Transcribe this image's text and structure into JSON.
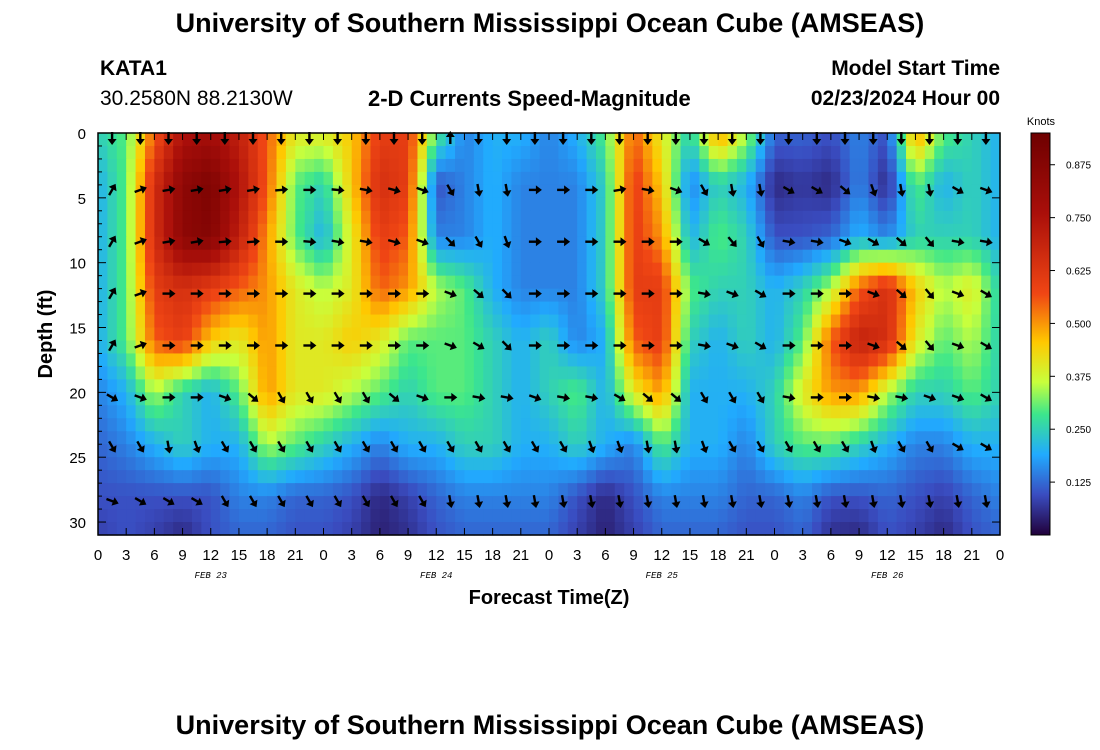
{
  "page": {
    "title": "University of Southern Mississippi Ocean Cube (AMSEAS)",
    "footer_title": "University of Southern Mississippi Ocean Cube (AMSEAS)",
    "station": "KATA1",
    "coords": "30.2580N  88.2130W",
    "subtitle": "2-D Currents Speed-Magnitude",
    "model_start_label": "Model Start Time",
    "model_start_value": "02/23/2024 Hour 00"
  },
  "chart_data": {
    "type": "heatmap",
    "title": "2-D Currents Speed-Magnitude",
    "xlabel": "Forecast Time(Z)",
    "ylabel": "Depth (ft)",
    "x_range_hours": [
      0,
      96
    ],
    "x_tick_labels": [
      "0",
      "3",
      "6",
      "9",
      "12",
      "15",
      "18",
      "21",
      "0",
      "3",
      "6",
      "9",
      "12",
      "15",
      "18",
      "21",
      "0",
      "3",
      "6",
      "9",
      "12",
      "15",
      "18",
      "21",
      "0",
      "3",
      "6",
      "9",
      "12",
      "15",
      "18",
      "21",
      "0"
    ],
    "date_labels": [
      {
        "hour": 12,
        "label": "FEB 23"
      },
      {
        "hour": 36,
        "label": "FEB 24"
      },
      {
        "hour": 60,
        "label": "FEB 25"
      },
      {
        "hour": 84,
        "label": "FEB 26"
      }
    ],
    "y_range_ft": [
      0,
      31
    ],
    "y_ticks": [
      0,
      5,
      10,
      15,
      20,
      25,
      30
    ],
    "colorbar": {
      "label": "Knots",
      "range": [
        0,
        0.95
      ],
      "ticks": [
        0.125,
        0.25,
        0.375,
        0.5,
        0.625,
        0.75,
        0.875
      ],
      "tick_labels": [
        "0.125",
        "0.250",
        "0.375",
        "0.500",
        "0.625",
        "0.750",
        "0.875"
      ]
    },
    "speed_grid": {
      "depths_ft": [
        0,
        4,
        8,
        12,
        16,
        20,
        24,
        28,
        31
      ],
      "hours": [
        0,
        3,
        6,
        9,
        12,
        15,
        18,
        21,
        24,
        27,
        30,
        33,
        36,
        39,
        42,
        45,
        48,
        51,
        54,
        57,
        60,
        63,
        66,
        69,
        72,
        75,
        78,
        81,
        84,
        87,
        90,
        93,
        96
      ],
      "values": [
        [
          0.25,
          0.3,
          0.55,
          0.75,
          0.78,
          0.7,
          0.55,
          0.4,
          0.4,
          0.45,
          0.6,
          0.6,
          0.3,
          0.15,
          0.2,
          0.2,
          0.15,
          0.2,
          0.3,
          0.55,
          0.4,
          0.25,
          0.5,
          0.35,
          0.12,
          0.12,
          0.1,
          0.15,
          0.1,
          0.5,
          0.3,
          0.25,
          0.2
        ],
        [
          0.2,
          0.3,
          0.65,
          0.85,
          0.9,
          0.75,
          0.55,
          0.3,
          0.25,
          0.45,
          0.65,
          0.6,
          0.1,
          0.15,
          0.2,
          0.15,
          0.15,
          0.15,
          0.25,
          0.6,
          0.45,
          0.15,
          0.25,
          0.2,
          0.05,
          0.07,
          0.05,
          0.15,
          0.05,
          0.3,
          0.2,
          0.25,
          0.2
        ],
        [
          0.2,
          0.3,
          0.65,
          0.85,
          0.88,
          0.7,
          0.5,
          0.3,
          0.2,
          0.4,
          0.6,
          0.55,
          0.15,
          0.15,
          0.2,
          0.15,
          0.15,
          0.15,
          0.25,
          0.6,
          0.5,
          0.2,
          0.3,
          0.25,
          0.1,
          0.1,
          0.12,
          0.2,
          0.15,
          0.25,
          0.25,
          0.25,
          0.2
        ],
        [
          0.2,
          0.3,
          0.6,
          0.65,
          0.6,
          0.55,
          0.5,
          0.4,
          0.35,
          0.4,
          0.55,
          0.5,
          0.35,
          0.3,
          0.2,
          0.15,
          0.15,
          0.15,
          0.25,
          0.6,
          0.6,
          0.3,
          0.25,
          0.25,
          0.2,
          0.25,
          0.35,
          0.55,
          0.65,
          0.45,
          0.35,
          0.4,
          0.25
        ],
        [
          0.2,
          0.3,
          0.55,
          0.6,
          0.45,
          0.4,
          0.5,
          0.4,
          0.4,
          0.45,
          0.4,
          0.3,
          0.3,
          0.3,
          0.25,
          0.2,
          0.25,
          0.15,
          0.2,
          0.55,
          0.6,
          0.25,
          0.2,
          0.25,
          0.2,
          0.3,
          0.55,
          0.7,
          0.65,
          0.4,
          0.3,
          0.35,
          0.25
        ],
        [
          0.15,
          0.2,
          0.35,
          0.25,
          0.2,
          0.3,
          0.5,
          0.4,
          0.4,
          0.35,
          0.3,
          0.25,
          0.3,
          0.3,
          0.25,
          0.2,
          0.25,
          0.3,
          0.2,
          0.4,
          0.5,
          0.2,
          0.2,
          0.2,
          0.25,
          0.4,
          0.5,
          0.5,
          0.35,
          0.25,
          0.25,
          0.3,
          0.25
        ],
        [
          0.12,
          0.15,
          0.2,
          0.25,
          0.2,
          0.2,
          0.35,
          0.3,
          0.25,
          0.2,
          0.15,
          0.2,
          0.2,
          0.25,
          0.25,
          0.2,
          0.2,
          0.25,
          0.2,
          0.15,
          0.3,
          0.2,
          0.2,
          0.15,
          0.25,
          0.3,
          0.3,
          0.25,
          0.2,
          0.15,
          0.15,
          0.2,
          0.2
        ],
        [
          0.1,
          0.1,
          0.1,
          0.1,
          0.1,
          0.15,
          0.15,
          0.12,
          0.12,
          0.1,
          0.05,
          0.08,
          0.12,
          0.15,
          0.15,
          0.15,
          0.15,
          0.1,
          0.05,
          0.1,
          0.15,
          0.15,
          0.15,
          0.12,
          0.12,
          0.15,
          0.1,
          0.1,
          0.12,
          0.1,
          0.08,
          0.12,
          0.15
        ],
        [
          0.08,
          0.1,
          0.08,
          0.05,
          0.1,
          0.12,
          0.12,
          0.1,
          0.1,
          0.08,
          0.04,
          0.06,
          0.1,
          0.12,
          0.12,
          0.12,
          0.12,
          0.08,
          0.04,
          0.08,
          0.12,
          0.12,
          0.12,
          0.1,
          0.1,
          0.12,
          0.06,
          0.05,
          0.1,
          0.08,
          0.05,
          0.1,
          0.12
        ]
      ]
    },
    "arrow_depths_ft": [
      0,
      4,
      8,
      12,
      16,
      20,
      23.8,
      28
    ],
    "arrow_hours": [
      0,
      3,
      6,
      9,
      12,
      15,
      18,
      21,
      24,
      27,
      30,
      33,
      36,
      39,
      42,
      45,
      48,
      51,
      54,
      57,
      60,
      63,
      66,
      69,
      72,
      75,
      78,
      81,
      84,
      87,
      90,
      93
    ],
    "arrow_angles_deg": [
      [
        270,
        270,
        270,
        270,
        270,
        270,
        270,
        270,
        270,
        270,
        270,
        270,
        90,
        270,
        270,
        270,
        270,
        270,
        270,
        270,
        270,
        270,
        270,
        270,
        270,
        270,
        270,
        270,
        270,
        270,
        270,
        270
      ],
      [
        60,
        20,
        10,
        10,
        10,
        10,
        5,
        0,
        -5,
        -10,
        -15,
        -20,
        -60,
        -80,
        -80,
        0,
        0,
        0,
        10,
        -10,
        -20,
        -60,
        -80,
        -80,
        -30,
        -30,
        -40,
        -70,
        -80,
        -80,
        -30,
        -20
      ],
      [
        60,
        20,
        10,
        10,
        5,
        5,
        0,
        -5,
        -10,
        -10,
        -15,
        -20,
        -45,
        -60,
        -70,
        0,
        0,
        0,
        0,
        0,
        0,
        -30,
        -50,
        -60,
        -10,
        -10,
        -20,
        -30,
        -40,
        -50,
        -10,
        -10
      ],
      [
        60,
        20,
        0,
        0,
        0,
        0,
        0,
        0,
        0,
        0,
        0,
        0,
        -20,
        -40,
        -45,
        0,
        0,
        0,
        0,
        0,
        0,
        -10,
        -20,
        -30,
        0,
        0,
        0,
        -20,
        -40,
        -50,
        -20,
        -30
      ],
      [
        60,
        20,
        0,
        0,
        0,
        0,
        0,
        0,
        0,
        0,
        0,
        0,
        -20,
        -30,
        -45,
        0,
        0,
        0,
        0,
        0,
        0,
        -10,
        -20,
        -30,
        0,
        0,
        0,
        -20,
        -40,
        -50,
        -20,
        -30
      ],
      [
        -30,
        -20,
        0,
        0,
        -20,
        -40,
        -60,
        -60,
        -60,
        -60,
        -40,
        -20,
        0,
        -10,
        -10,
        -20,
        -10,
        -10,
        -30,
        -40,
        -40,
        -60,
        -60,
        -60,
        -10,
        0,
        0,
        -10,
        -10,
        -20,
        -20,
        -30
      ],
      [
        -60,
        -60,
        -80,
        -70,
        -60,
        -60,
        -60,
        -60,
        -60,
        -60,
        -60,
        -60,
        -60,
        -60,
        -60,
        -60,
        -60,
        -70,
        -70,
        -80,
        -80,
        -70,
        -60,
        -60,
        -60,
        -60,
        -60,
        -70,
        -60,
        -60,
        -30,
        -30
      ],
      [
        -20,
        -30,
        -30,
        -30,
        -60,
        -60,
        -60,
        -60,
        -60,
        -60,
        -60,
        -60,
        -80,
        -80,
        -80,
        -80,
        -80,
        -80,
        -80,
        -80,
        -80,
        -80,
        -80,
        -80,
        -80,
        -80,
        -80,
        -80,
        -80,
        -80,
        -80,
        -80
      ]
    ]
  }
}
